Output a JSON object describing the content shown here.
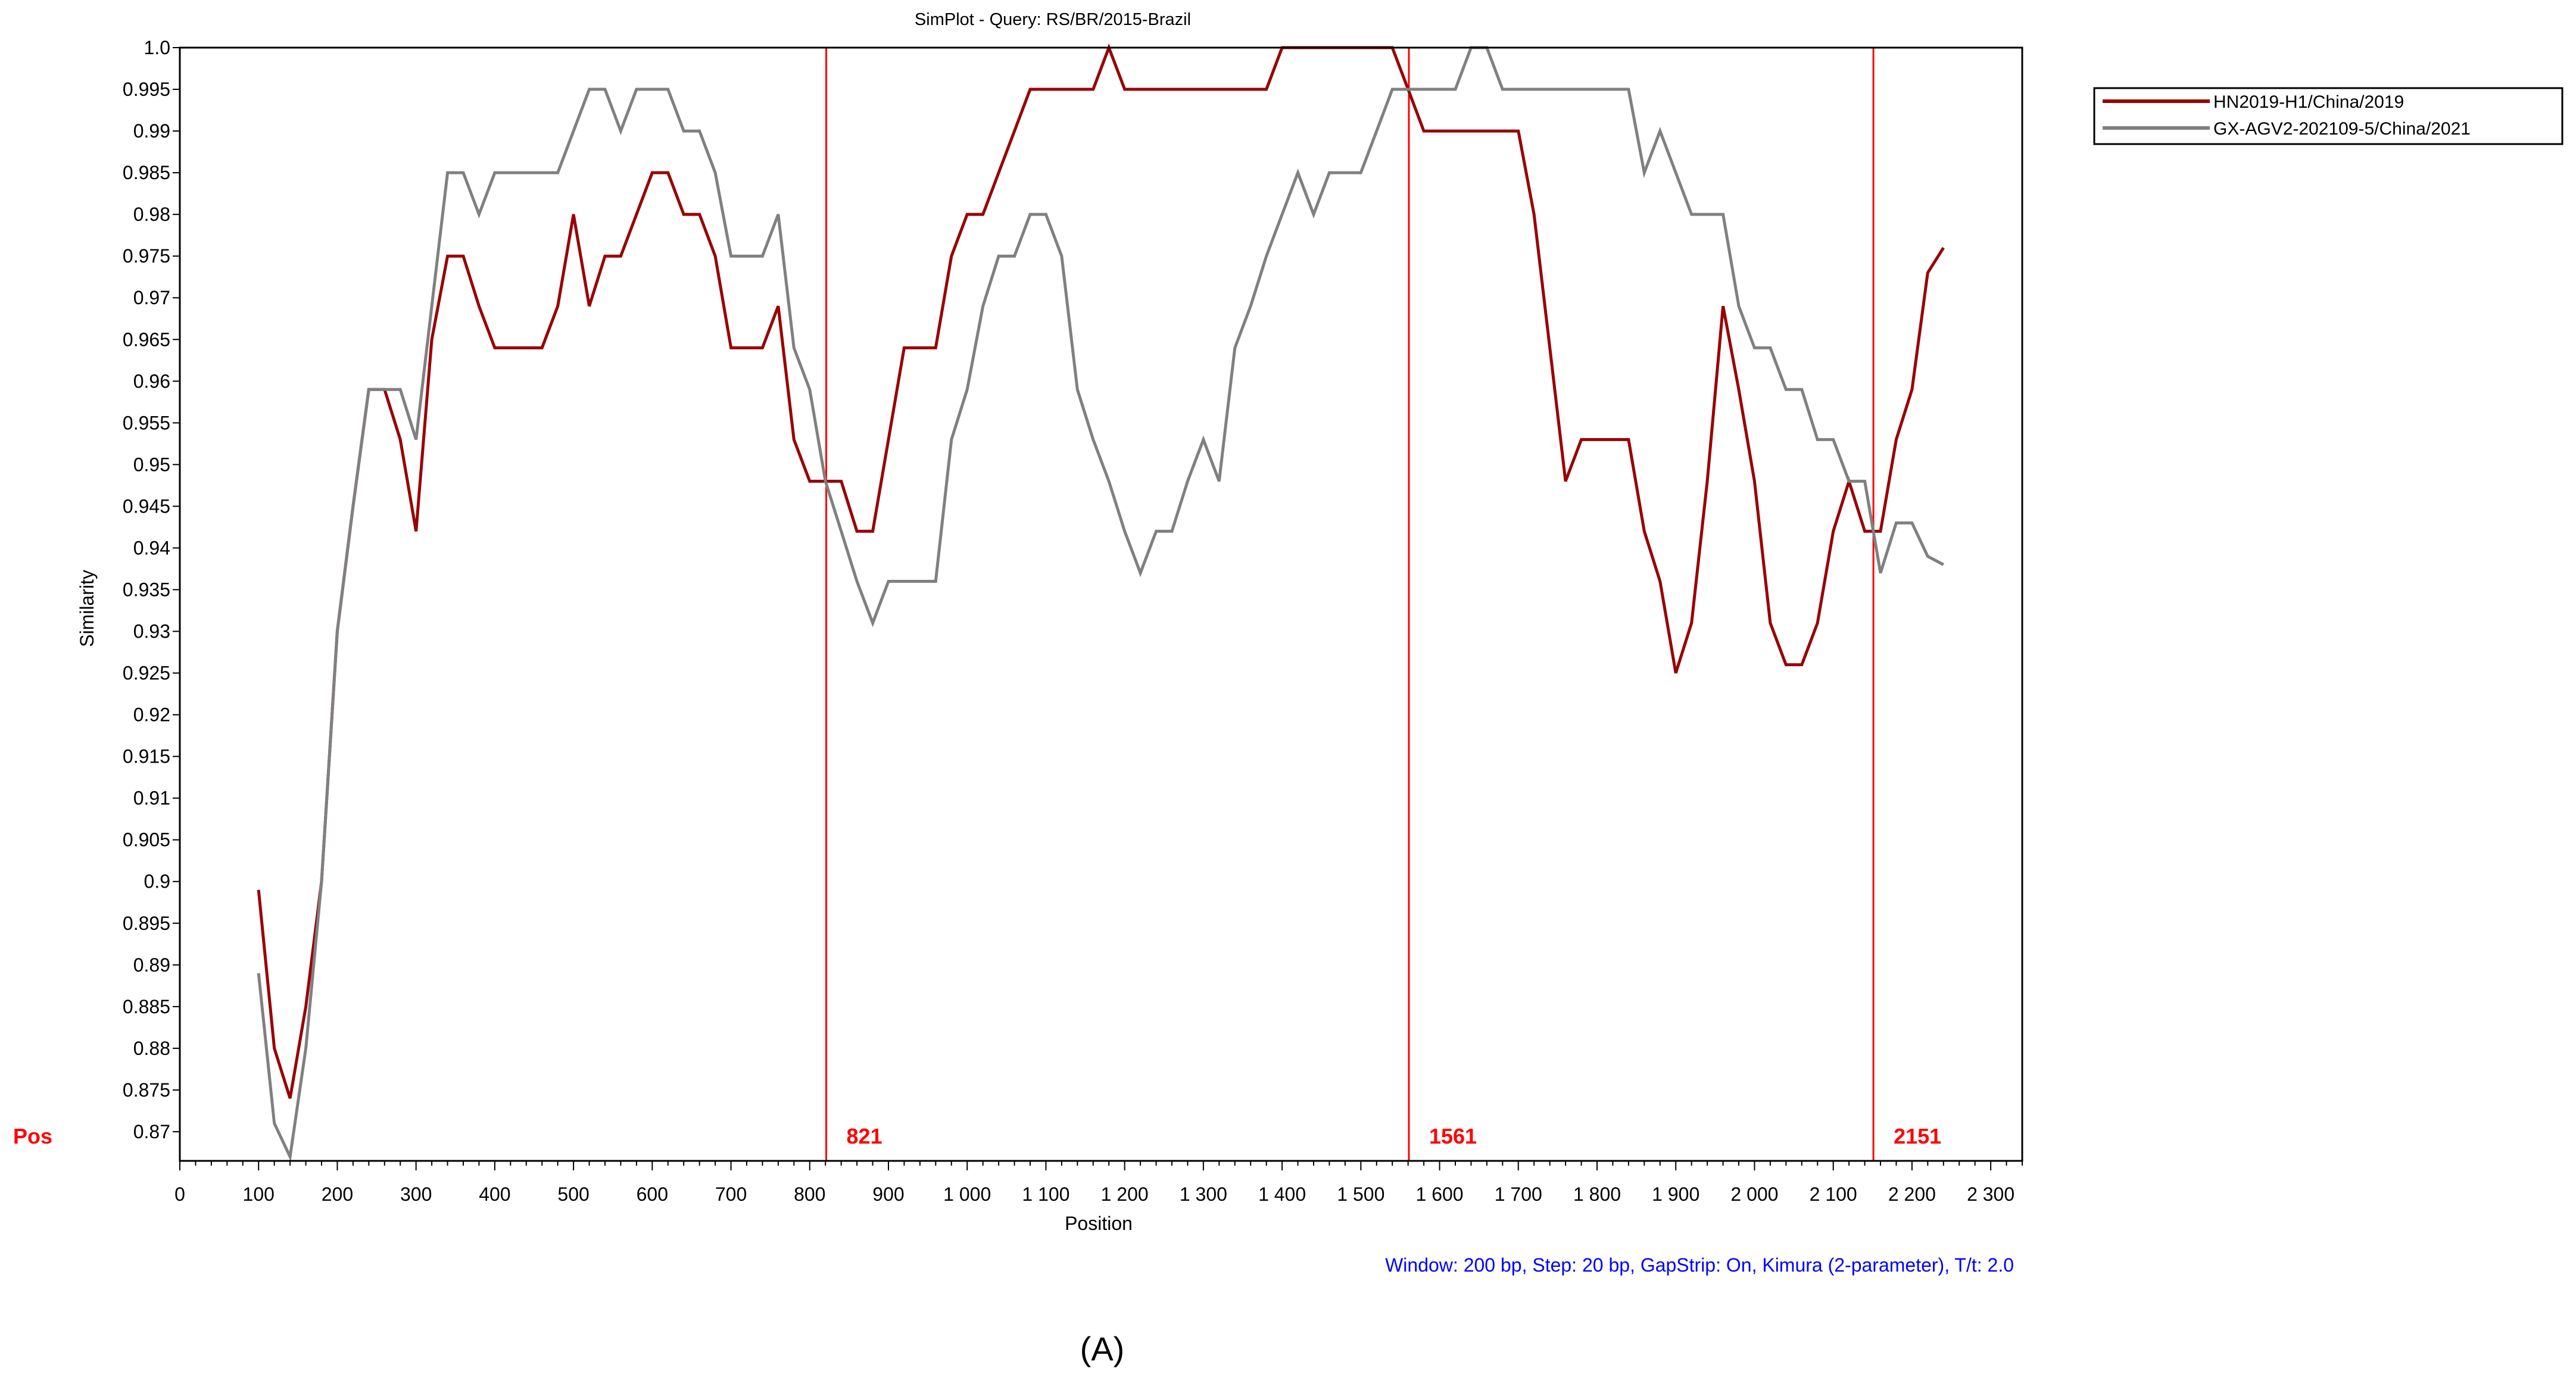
{
  "chart_data": {
    "type": "line",
    "title": "SimPlot - Query: RS/BR/2015-Brazil",
    "xlabel": "Position",
    "ylabel": "Similarity",
    "xlim": [
      0,
      2340
    ],
    "ylim": [
      0.8665,
      1.0
    ],
    "x_ticks": [
      0,
      100,
      200,
      300,
      400,
      500,
      600,
      700,
      800,
      900,
      1000,
      1100,
      1200,
      1300,
      1400,
      1500,
      1600,
      1700,
      1800,
      1900,
      2000,
      2100,
      2200,
      2300
    ],
    "x_tick_labels": [
      "0",
      "100",
      "200",
      "300",
      "400",
      "500",
      "600",
      "700",
      "800",
      "900",
      "1 000",
      "1 100",
      "1 200",
      "1 300",
      "1 400",
      "1 500",
      "1 600",
      "1 700",
      "1 800",
      "1 900",
      "2 000",
      "2 100",
      "2 200",
      "2 300"
    ],
    "y_ticks": [
      0.87,
      0.875,
      0.88,
      0.885,
      0.89,
      0.895,
      0.9,
      0.905,
      0.91,
      0.915,
      0.92,
      0.925,
      0.93,
      0.935,
      0.94,
      0.945,
      0.95,
      0.955,
      0.96,
      0.965,
      0.97,
      0.975,
      0.98,
      0.985,
      0.99,
      0.995,
      1.0
    ],
    "y_tick_labels": [
      "0.87",
      "0.875",
      "0.88",
      "0.885",
      "0.89",
      "0.895",
      "0.9",
      "0.905",
      "0.91",
      "0.915",
      "0.92",
      "0.925",
      "0.93",
      "0.935",
      "0.94",
      "0.945",
      "0.95",
      "0.955",
      "0.96",
      "0.965",
      "0.97",
      "0.975",
      "0.98",
      "0.985",
      "0.99",
      "0.995",
      "1.0"
    ],
    "grid": false,
    "legend_position": "top-right, outside plot",
    "breakpoints": [
      821,
      1561,
      2151
    ],
    "breakpoint_label": "Pos",
    "breakpoint_color": "#ff0000",
    "footnote": "Window: 200 bp, Step: 20 bp, GapStrip: On, Kimura (2-parameter), T/t: 2.0",
    "series": [
      {
        "name": "HN2019-H1/China/2019",
        "color": "#990000",
        "x": [
          100,
          120,
          140,
          160,
          180,
          200,
          220,
          240,
          260,
          280,
          300,
          320,
          340,
          360,
          380,
          400,
          420,
          440,
          460,
          480,
          500,
          520,
          540,
          560,
          580,
          600,
          620,
          640,
          660,
          680,
          700,
          720,
          740,
          760,
          780,
          800,
          820,
          840,
          860,
          880,
          900,
          920,
          940,
          960,
          980,
          1000,
          1020,
          1040,
          1060,
          1080,
          1100,
          1120,
          1140,
          1160,
          1180,
          1200,
          1220,
          1240,
          1260,
          1280,
          1300,
          1320,
          1340,
          1360,
          1380,
          1400,
          1420,
          1440,
          1460,
          1480,
          1500,
          1520,
          1540,
          1560,
          1580,
          1600,
          1620,
          1640,
          1660,
          1680,
          1700,
          1720,
          1740,
          1760,
          1780,
          1800,
          1820,
          1840,
          1860,
          1880,
          1900,
          1920,
          1940,
          1960,
          1980,
          2000,
          2020,
          2040,
          2060,
          2080,
          2100,
          2120,
          2140,
          2160,
          2180,
          2200,
          2220,
          2240
        ],
        "values": [
          0.899,
          0.88,
          0.874,
          0.885,
          0.9,
          0.93,
          0.945,
          0.959,
          0.959,
          0.953,
          0.942,
          0.965,
          0.975,
          0.975,
          0.969,
          0.964,
          0.964,
          0.964,
          0.964,
          0.969,
          0.98,
          0.969,
          0.975,
          0.975,
          0.98,
          0.985,
          0.985,
          0.98,
          0.98,
          0.975,
          0.964,
          0.964,
          0.964,
          0.969,
          0.953,
          0.948,
          0.948,
          0.948,
          0.942,
          0.942,
          0.953,
          0.964,
          0.964,
          0.964,
          0.975,
          0.98,
          0.98,
          0.985,
          0.99,
          0.995,
          0.995,
          0.995,
          0.995,
          0.995,
          1.0,
          0.995,
          0.995,
          0.995,
          0.995,
          0.995,
          0.995,
          0.995,
          0.995,
          0.995,
          0.995,
          1.0,
          1.0,
          1.0,
          1.0,
          1.0,
          1.0,
          1.0,
          1.0,
          0.995,
          0.99,
          0.99,
          0.99,
          0.99,
          0.99,
          0.99,
          0.99,
          0.98,
          0.964,
          0.948,
          0.953,
          0.953,
          0.953,
          0.953,
          0.942,
          0.936,
          0.925,
          0.931,
          0.948,
          0.969,
          0.959,
          0.948,
          0.931,
          0.926,
          0.926,
          0.931,
          0.942,
          0.948,
          0.942,
          0.942,
          0.953,
          0.959,
          0.973,
          0.976
        ]
      },
      {
        "name": "GX-AGV2-202109-5/China/2021",
        "color": "#808080",
        "x": [
          100,
          120,
          140,
          160,
          180,
          200,
          220,
          240,
          260,
          280,
          300,
          320,
          340,
          360,
          380,
          400,
          420,
          440,
          460,
          480,
          500,
          520,
          540,
          560,
          580,
          600,
          620,
          640,
          660,
          680,
          700,
          720,
          740,
          760,
          780,
          800,
          820,
          840,
          860,
          880,
          900,
          920,
          940,
          960,
          980,
          1000,
          1020,
          1040,
          1060,
          1080,
          1100,
          1120,
          1140,
          1160,
          1180,
          1200,
          1220,
          1240,
          1260,
          1280,
          1300,
          1320,
          1340,
          1360,
          1380,
          1400,
          1420,
          1440,
          1460,
          1480,
          1500,
          1520,
          1540,
          1560,
          1580,
          1600,
          1620,
          1640,
          1660,
          1680,
          1700,
          1720,
          1740,
          1760,
          1780,
          1800,
          1820,
          1840,
          1860,
          1880,
          1900,
          1920,
          1940,
          1960,
          1980,
          2000,
          2020,
          2040,
          2060,
          2080,
          2100,
          2120,
          2140,
          2160,
          2180,
          2200,
          2220,
          2240
        ],
        "values": [
          0.889,
          0.871,
          0.867,
          0.88,
          0.9,
          0.93,
          0.945,
          0.959,
          0.959,
          0.959,
          0.953,
          0.969,
          0.985,
          0.985,
          0.98,
          0.985,
          0.985,
          0.985,
          0.985,
          0.985,
          0.99,
          0.995,
          0.995,
          0.99,
          0.995,
          0.995,
          0.995,
          0.99,
          0.99,
          0.985,
          0.975,
          0.975,
          0.975,
          0.98,
          0.964,
          0.959,
          0.948,
          0.942,
          0.936,
          0.931,
          0.936,
          0.936,
          0.936,
          0.936,
          0.953,
          0.959,
          0.969,
          0.975,
          0.975,
          0.98,
          0.98,
          0.975,
          0.959,
          0.953,
          0.948,
          0.942,
          0.937,
          0.942,
          0.942,
          0.948,
          0.953,
          0.948,
          0.964,
          0.969,
          0.975,
          0.98,
          0.985,
          0.98,
          0.985,
          0.985,
          0.985,
          0.99,
          0.995,
          0.995,
          0.995,
          0.995,
          0.995,
          1.0,
          1.0,
          0.995,
          0.995,
          0.995,
          0.995,
          0.995,
          0.995,
          0.995,
          0.995,
          0.995,
          0.985,
          0.99,
          0.985,
          0.98,
          0.98,
          0.98,
          0.969,
          0.964,
          0.964,
          0.959,
          0.959,
          0.953,
          0.953,
          0.948,
          0.948,
          0.937,
          0.943,
          0.943,
          0.939,
          0.938
        ]
      }
    ]
  },
  "figure_label": "(A)"
}
